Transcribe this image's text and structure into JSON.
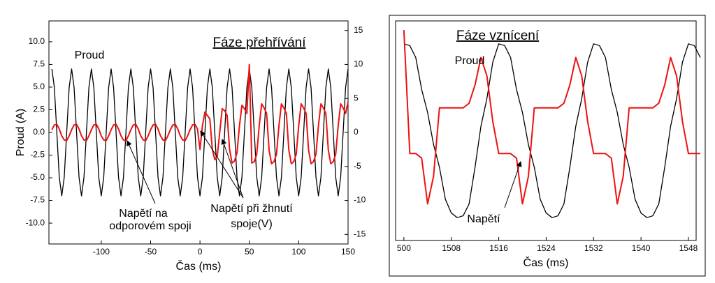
{
  "chart_data": [
    {
      "type": "line",
      "title": "Fáze přehřívání",
      "xlabel": "Čas (ms)",
      "ylabel": "Proud (A)",
      "annotations": [
        "Proud",
        "Napětí na",
        "odporovém spoji",
        "Napětí při žhnutí",
        "spoje(V)"
      ],
      "xlim": [
        -153,
        150
      ],
      "xticks": [
        -100,
        -50,
        0,
        50,
        100,
        150
      ],
      "ylim": [
        -12.3,
        12.3
      ],
      "yticks": [
        {
          "value": -10,
          "label": "-10.0"
        },
        {
          "value": -7.5,
          "label": "-7.5"
        },
        {
          "value": -5,
          "label": "-5.0"
        },
        {
          "value": -2.5,
          "label": "-2.5"
        },
        {
          "value": 0,
          "label": "0.0"
        },
        {
          "value": 2.5,
          "label": "2.5"
        },
        {
          "value": 5,
          "label": "5.0"
        },
        {
          "value": 7.5,
          "label": "7.5"
        },
        {
          "value": 10,
          "label": "10.0"
        }
      ],
      "y2lim": [
        -16.4,
        16.4
      ],
      "y2ticks": [
        -15,
        -10,
        -5,
        0,
        5,
        10,
        15
      ],
      "x": [
        -150,
        -147.5,
        -145,
        -142.5,
        -140,
        -137.5,
        -135,
        -132.5,
        -130,
        -127.5,
        -125,
        -122.5,
        -120,
        -117.5,
        -115,
        -112.5,
        -110,
        -107.5,
        -105,
        -102.5,
        -100,
        -97.5,
        -95,
        -92.5,
        -90,
        -87.5,
        -85,
        -82.5,
        -80,
        -77.5,
        -75,
        -72.5,
        -70,
        -67.5,
        -65,
        -62.5,
        -60,
        -57.5,
        -55,
        -52.5,
        -50,
        -47.5,
        -45,
        -42.5,
        -40,
        -37.5,
        -35,
        -32.5,
        -30,
        -27.5,
        -25,
        -22.5,
        -20,
        -17.5,
        -15,
        -12.5,
        -10,
        -7.5,
        -5,
        -2.5,
        0,
        2.5,
        5,
        7.5,
        10,
        12.5,
        15,
        17.5,
        20,
        22.5,
        25,
        27.5,
        30,
        32.5,
        35,
        37.5,
        40,
        42.5,
        45,
        47.5,
        50,
        52.5,
        55,
        57.5,
        60,
        62.5,
        65,
        67.5,
        70,
        72.5,
        75,
        77.5,
        80,
        82.5,
        85,
        87.5,
        90,
        92.5,
        95,
        97.5,
        100,
        102.5,
        105,
        107.5,
        110,
        112.5,
        115,
        117.5,
        120,
        122.5,
        125,
        127.5,
        130,
        132.5,
        135,
        137.5,
        140,
        142.5,
        145,
        147.5,
        150
      ],
      "series": [
        {
          "name": "Proud",
          "color": "#000000",
          "values": [
            7,
            4.95,
            0,
            -4.95,
            -7,
            -4.95,
            0,
            4.95,
            7,
            4.95,
            0,
            -4.95,
            -7,
            -4.95,
            0,
            4.95,
            7,
            4.95,
            0,
            -4.95,
            -7,
            -4.95,
            0,
            4.95,
            7,
            4.95,
            0,
            -4.95,
            -7,
            -4.95,
            0,
            4.95,
            7,
            4.95,
            0,
            -4.95,
            -7,
            -4.95,
            0,
            4.95,
            7,
            4.95,
            0,
            -4.95,
            -7,
            -4.95,
            0,
            4.95,
            7,
            4.95,
            0,
            -4.95,
            -7,
            -4.95,
            0,
            4.95,
            7,
            4.95,
            0,
            -4.95,
            -7,
            -4.95,
            0,
            4.95,
            7,
            4.95,
            0,
            -4.95,
            -7,
            -4.95,
            0,
            4.95,
            7,
            4.95,
            0,
            -4.95,
            -7,
            -4.95,
            0,
            4.95,
            7,
            4.95,
            0,
            -4.95,
            -7,
            -4.95,
            0,
            4.95,
            7,
            4.95,
            0,
            -4.95,
            -7,
            -4.95,
            0,
            4.95,
            7,
            4.95,
            0,
            -4.95,
            -7,
            -4.95,
            0,
            4.95,
            7,
            4.95,
            0,
            -4.95,
            -7,
            -4.95,
            0,
            4.95,
            7,
            4.95,
            0,
            -4.95,
            -7,
            -4.95,
            0,
            4.95,
            7
          ]
        },
        {
          "name": "Napětí",
          "color": "#ee1111",
          "axis": "y2",
          "values": [
            0.4,
            1.1,
            1.2,
            0.5,
            -0.5,
            -1.1,
            -1.2,
            -0.5,
            0.4,
            1.1,
            1.2,
            0.5,
            -0.5,
            -1.1,
            -1.2,
            -0.5,
            0.4,
            1.1,
            1.2,
            0.5,
            -0.5,
            -1.1,
            -1.2,
            -0.5,
            0.4,
            1.1,
            1.2,
            0.5,
            -0.5,
            -1.1,
            -1.2,
            -0.5,
            0.4,
            1.1,
            1.2,
            0.5,
            -0.5,
            -1.1,
            -1.2,
            -0.5,
            0.4,
            1.1,
            1.2,
            0.5,
            -0.5,
            -1.1,
            -1.2,
            -0.5,
            0.4,
            1.1,
            1.2,
            0.5,
            -0.5,
            -1.1,
            -1.2,
            -0.5,
            0.4,
            1.1,
            1.2,
            0.5,
            -2.5,
            1,
            3,
            2.5,
            2,
            -2.5,
            -4,
            -3.5,
            0,
            3.5,
            3.2,
            2.5,
            -2.5,
            -4.5,
            -4.2,
            -3,
            1,
            4,
            3.5,
            2.8,
            10,
            -4.5,
            -4.3,
            -3.2,
            1,
            4.2,
            3.6,
            2.8,
            -2.6,
            -4.6,
            -4.3,
            -3.2,
            1,
            4.2,
            3.6,
            2.8,
            -2.6,
            -4.6,
            -4.3,
            -3.2,
            1,
            4.2,
            3.6,
            2.8,
            -2.6,
            -4.6,
            -4.3,
            -3.2,
            1,
            4.2,
            3.6,
            2.8,
            -2.6,
            -4.6,
            -4.3,
            -3.2,
            1,
            4.2,
            3.6,
            2.8,
            4.5
          ]
        }
      ]
    },
    {
      "type": "line",
      "title": "Fáze vznícení",
      "xlabel": "Čas (ms)",
      "annotations": [
        "Proud",
        "Napětí"
      ],
      "xlim": [
        1498.6,
        1549.3
      ],
      "xticks": [
        {
          "value": 1500,
          "label": "500"
        },
        1508,
        1516,
        1524,
        1532,
        1540,
        1548
      ],
      "ylim": [
        -12,
        12
      ],
      "x": [
        1500,
        1501,
        1502,
        1503,
        1504,
        1505,
        1506,
        1507,
        1508,
        1509,
        1510,
        1511,
        1512,
        1513,
        1514,
        1515,
        1516,
        1517,
        1518,
        1519,
        1520,
        1521,
        1522,
        1523,
        1524,
        1525,
        1526,
        1527,
        1528,
        1529,
        1530,
        1531,
        1532,
        1533,
        1534,
        1535,
        1536,
        1537,
        1538,
        1539,
        1540,
        1541,
        1542,
        1543,
        1544,
        1545,
        1546,
        1547,
        1548,
        1549,
        1550
      ],
      "series": [
        {
          "name": "Proud",
          "color": "#000000",
          "values": [
            9.5,
            9.3,
            8,
            4.5,
            2,
            -1.5,
            -4,
            -7.5,
            -9,
            -9.5,
            -9.3,
            -8,
            -4,
            0.5,
            3.5,
            7.5,
            9.5,
            9.3,
            8,
            4.5,
            2,
            -1.5,
            -4,
            -7.5,
            -9,
            -9.5,
            -9.3,
            -8,
            -4,
            0.5,
            3.5,
            7.5,
            9.5,
            9.3,
            8,
            4.5,
            2,
            -1.5,
            -4,
            -7.5,
            -9,
            -9.5,
            -9.3,
            -8,
            -4,
            0.5,
            3.5,
            7.5,
            9.5,
            9.3,
            8
          ]
        },
        {
          "name": "Napětí",
          "color": "#ee1111",
          "values": [
            11,
            -2.5,
            -2.5,
            -3,
            -8,
            -5,
            2.5,
            2.5,
            2.5,
            2.5,
            2.5,
            3,
            5,
            8,
            6,
            1,
            -2.5,
            -2.5,
            -2.5,
            -3,
            -8,
            -5,
            2.5,
            2.5,
            2.5,
            2.5,
            2.5,
            3,
            5,
            8,
            6,
            1,
            -2.5,
            -2.5,
            -2.5,
            -3,
            -8,
            -5,
            2.5,
            2.5,
            2.5,
            2.5,
            2.5,
            3,
            5,
            8,
            6,
            1,
            -2.5,
            -2.5,
            -2.5
          ]
        }
      ]
    }
  ]
}
